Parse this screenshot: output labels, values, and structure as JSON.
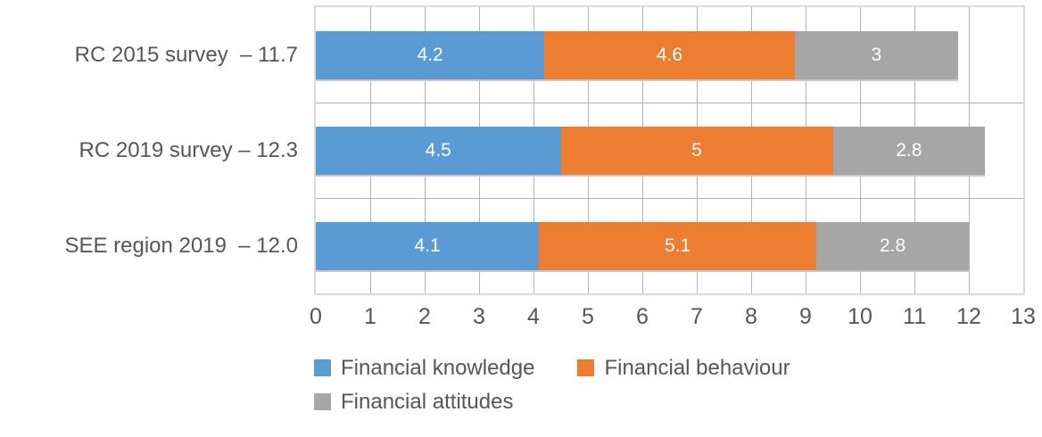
{
  "chart_data": {
    "type": "bar",
    "stacked": true,
    "orientation": "horizontal",
    "title": "",
    "categories": [
      "RC 2015 survey",
      "RC 2019 survey",
      "SEE region 2019"
    ],
    "category_totals": [
      "11.7",
      "12.3",
      "12.0"
    ],
    "row_labels": [
      "RC 2015 survey  – 11.7",
      "RC 2019 survey – 12.3",
      "SEE region 2019  – 12.0"
    ],
    "series": [
      {
        "name": "Financial knowledge",
        "color": "#5B9BD5",
        "values": [
          4.2,
          4.5,
          4.1
        ],
        "value_labels": [
          "4.2",
          "4.5",
          "4.1"
        ]
      },
      {
        "name": "Financial behaviour",
        "color": "#ED7D31",
        "values": [
          4.6,
          5,
          5.1
        ],
        "value_labels": [
          "4.6",
          "5",
          "5.1"
        ]
      },
      {
        "name": "Financial attitudes",
        "color": "#A6A6A6",
        "values": [
          3,
          2.8,
          2.8
        ],
        "value_labels": [
          "3",
          "2.8",
          "2.8"
        ]
      }
    ],
    "xlim": [
      0,
      13
    ],
    "x_ticks": [
      "0",
      "1",
      "2",
      "3",
      "4",
      "5",
      "6",
      "7",
      "8",
      "9",
      "10",
      "11",
      "12",
      "13"
    ],
    "grid": "vertical-unit-lines-and-category-band-lines",
    "legend_position": "bottom-left",
    "colors": {
      "grid_line": "#B3B3B3",
      "plot_border": "#D9D9D9",
      "bar_shadow": "#C8C8C8",
      "axis_text": "#54565A",
      "bar_value_text": "#ffffff",
      "background": "#ffffff"
    }
  }
}
